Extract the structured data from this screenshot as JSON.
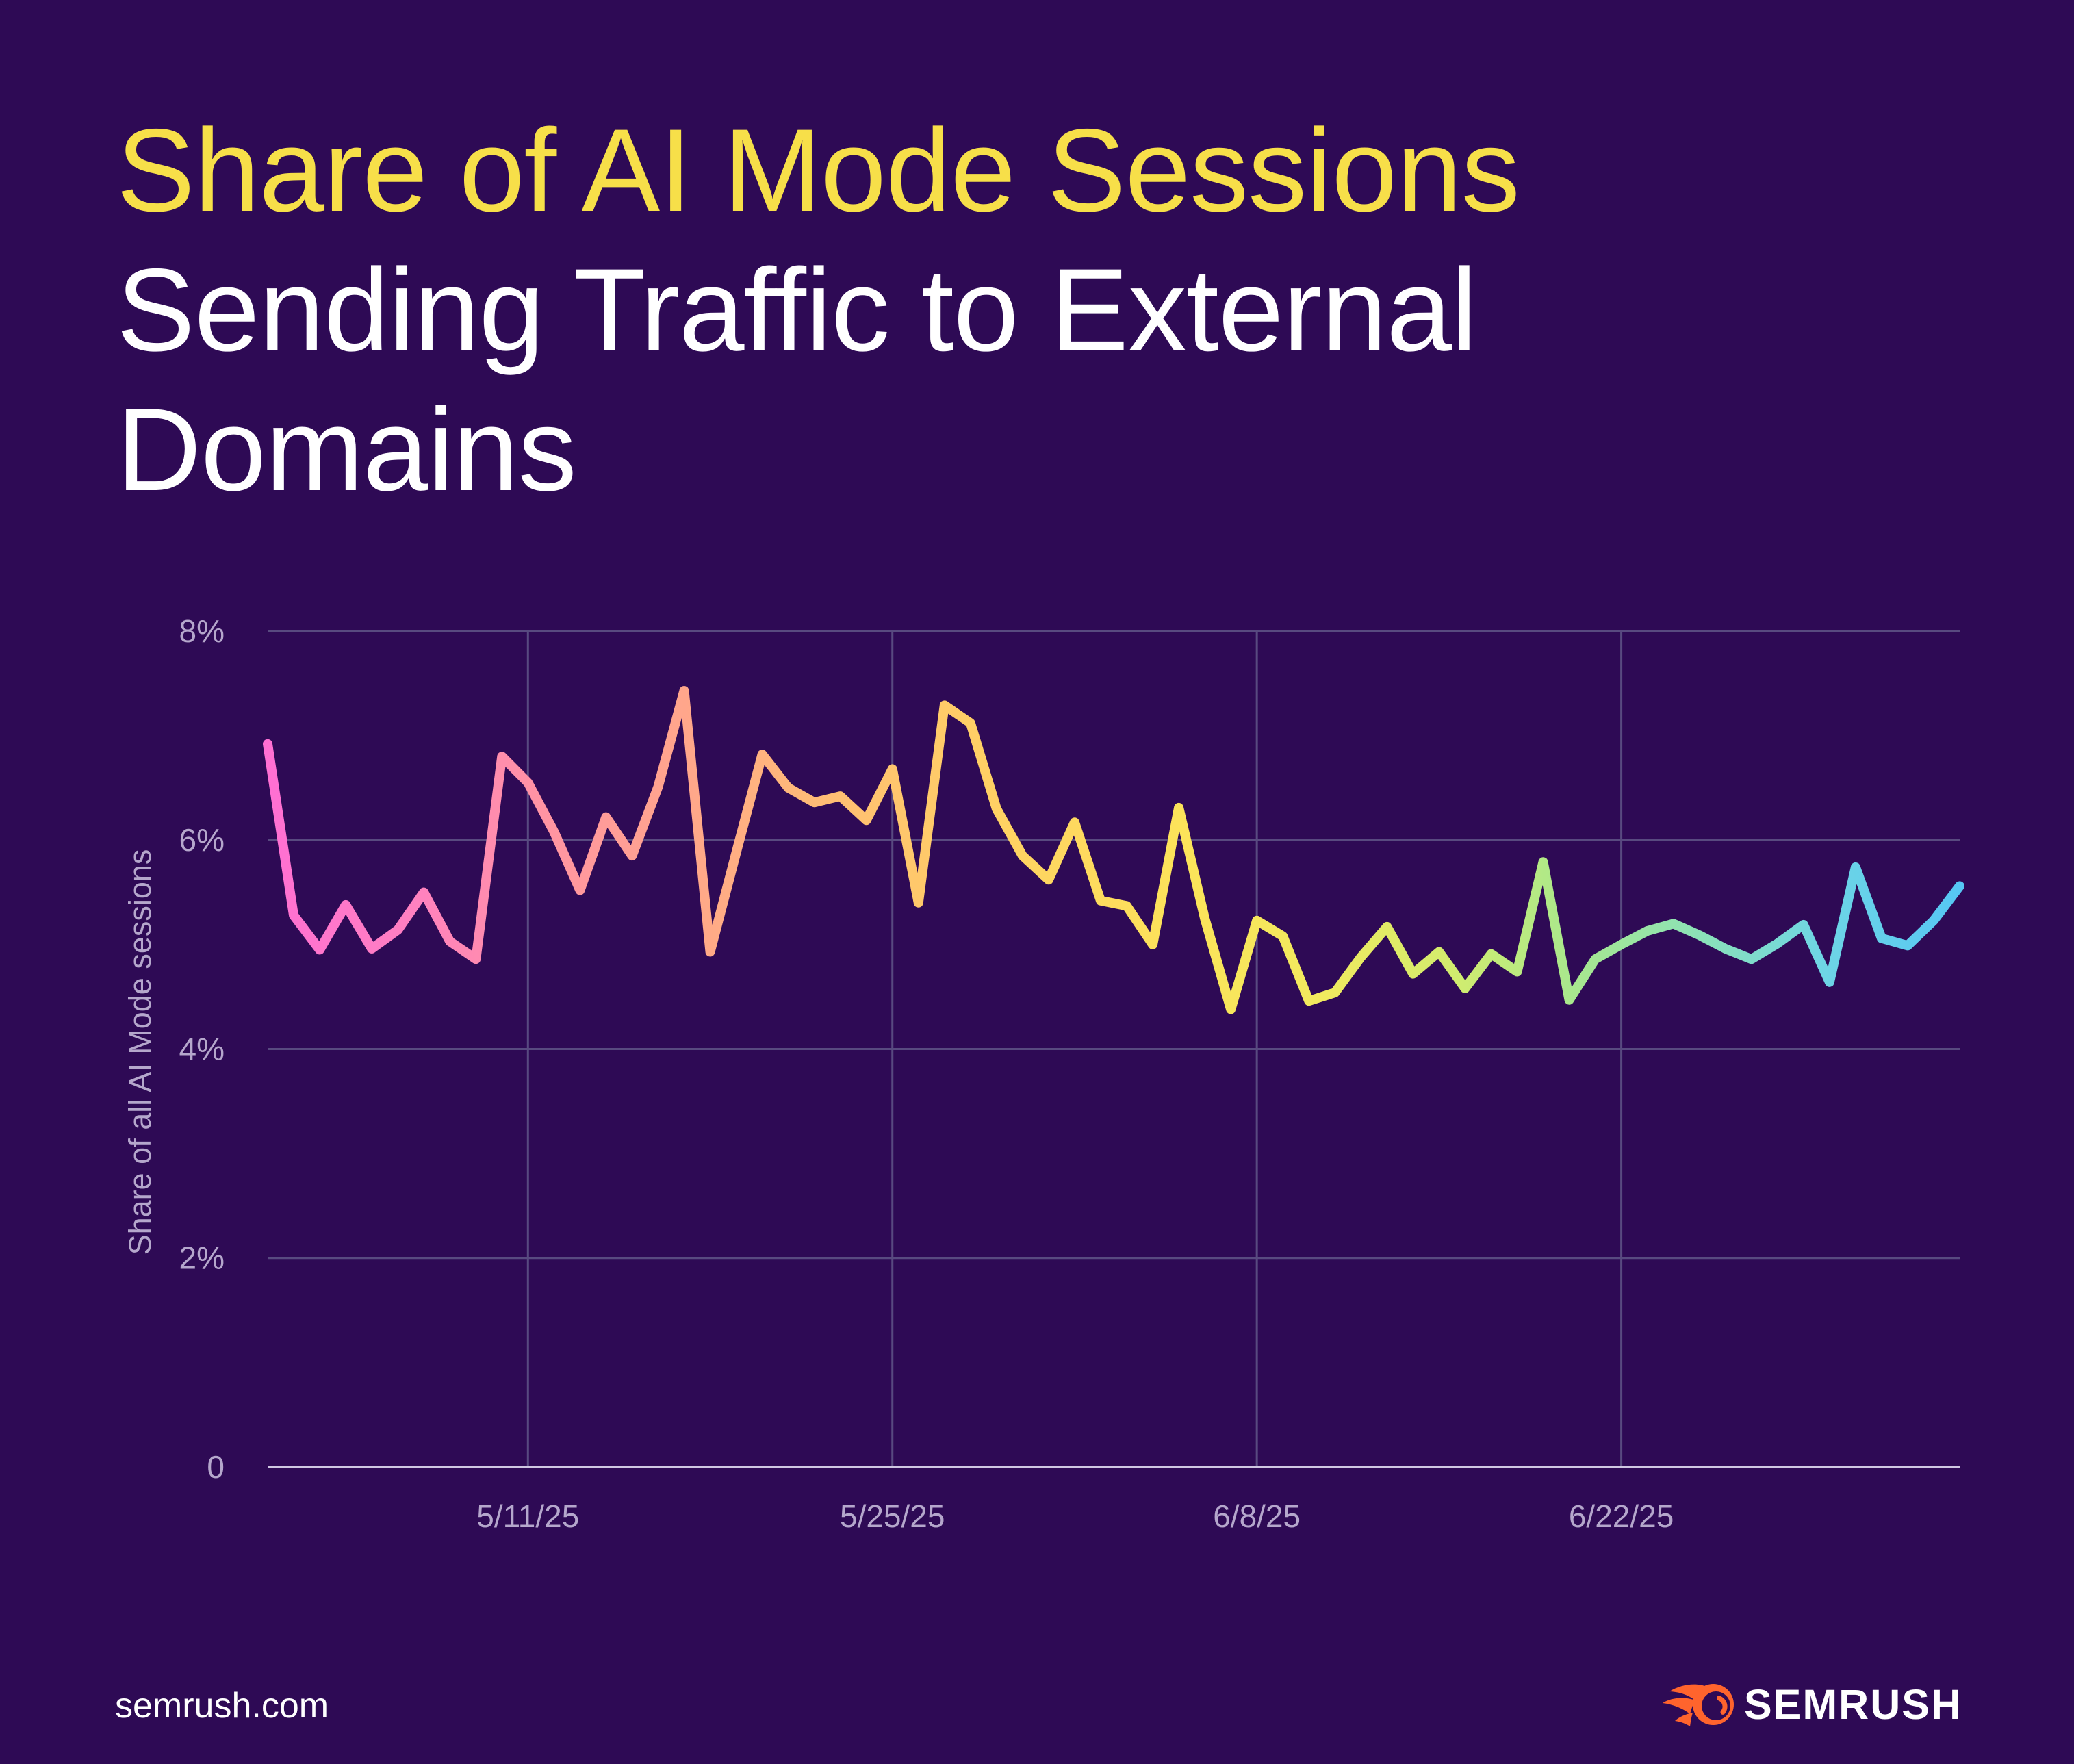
{
  "page": {
    "background": "#2e0a55"
  },
  "header": {
    "title_line1": "Share of AI Mode Sessions",
    "title_line2": "Sending Traffic to External",
    "title_line3": "Domains",
    "title_line1_color": "#f7df49",
    "title_rest_color": "#ffffff"
  },
  "chart_data": {
    "type": "line",
    "title": "",
    "xlabel": "",
    "ylabel": "Share of all AI Mode sessions",
    "ylim": [
      0,
      8
    ],
    "grid": true,
    "legend_position": "none",
    "yticks": [
      {
        "value": 0,
        "label": "0"
      },
      {
        "value": 2,
        "label": "2%"
      },
      {
        "value": 4,
        "label": "4%"
      },
      {
        "value": 6,
        "label": "6%"
      },
      {
        "value": 8,
        "label": "8%"
      }
    ],
    "xticks": [
      "5/11/25",
      "5/25/25",
      "6/8/25",
      "6/22/25"
    ],
    "x": [
      "5/1/25",
      "5/2/25",
      "5/3/25",
      "5/4/25",
      "5/5/25",
      "5/6/25",
      "5/7/25",
      "5/8/25",
      "5/9/25",
      "5/10/25",
      "5/11/25",
      "5/12/25",
      "5/13/25",
      "5/14/25",
      "5/15/25",
      "5/16/25",
      "5/17/25",
      "5/18/25",
      "5/19/25",
      "5/20/25",
      "5/21/25",
      "5/22/25",
      "5/23/25",
      "5/24/25",
      "5/25/25",
      "5/26/25",
      "5/27/25",
      "5/28/25",
      "5/29/25",
      "5/30/25",
      "5/31/25",
      "6/1/25",
      "6/2/25",
      "6/3/25",
      "6/4/25",
      "6/5/25",
      "6/6/25",
      "6/7/25",
      "6/8/25",
      "6/9/25",
      "6/10/25",
      "6/11/25",
      "6/12/25",
      "6/13/25",
      "6/14/25",
      "6/15/25",
      "6/16/25",
      "6/17/25",
      "6/18/25",
      "6/19/25",
      "6/20/25",
      "6/21/25",
      "6/22/25",
      "6/23/25",
      "6/24/25",
      "6/25/25",
      "6/26/25",
      "6/27/25",
      "6/28/25",
      "6/29/25",
      "6/30/25",
      "7/1/25",
      "7/2/25",
      "7/3/25",
      "7/4/25",
      "7/5/25"
    ],
    "series": [
      {
        "name": "Share of all AI Mode sessions",
        "unit": "%",
        "values": [
          6.92,
          5.28,
          4.95,
          5.38,
          4.96,
          5.14,
          5.5,
          5.03,
          4.86,
          6.8,
          6.55,
          6.08,
          5.52,
          6.22,
          5.85,
          6.51,
          7.43,
          4.93,
          5.88,
          6.82,
          6.5,
          6.36,
          6.42,
          6.19,
          6.68,
          5.4,
          7.29,
          7.12,
          6.3,
          5.85,
          5.62,
          6.17,
          5.42,
          5.37,
          5.0,
          6.31,
          5.25,
          4.38,
          5.23,
          5.08,
          4.46,
          4.54,
          4.88,
          5.17,
          4.72,
          4.93,
          4.58,
          4.91,
          4.74,
          5.79,
          4.47,
          4.86,
          5.0,
          5.13,
          5.2,
          5.09,
          4.96,
          4.86,
          5.01,
          5.19,
          4.64,
          5.74,
          5.06,
          4.99,
          5.23,
          5.56
        ]
      }
    ],
    "line_gradient_stops": [
      [
        "0.00",
        "#ff6fd3"
      ],
      [
        "0.08",
        "#ff7fc2"
      ],
      [
        "0.16",
        "#ff93a4"
      ],
      [
        "0.25",
        "#ffa78a"
      ],
      [
        "0.34",
        "#ffc072"
      ],
      [
        "0.44",
        "#ffd362"
      ],
      [
        "0.54",
        "#fce35a"
      ],
      [
        "0.62",
        "#f2ea5e"
      ],
      [
        "0.70",
        "#d2ec6e"
      ],
      [
        "0.77",
        "#a9e88d"
      ],
      [
        "0.84",
        "#8ee2b4"
      ],
      [
        "0.92",
        "#6ed5e5"
      ],
      [
        "1.00",
        "#56c7f4"
      ]
    ],
    "colors": {
      "gridline": "#584a80",
      "axis_line": "#cfc7e2",
      "tick_text": "#b5a7cc"
    }
  },
  "footer": {
    "site": "semrush.com",
    "logo_text": "SEMRUSH",
    "logo_color": "#ff642d"
  }
}
